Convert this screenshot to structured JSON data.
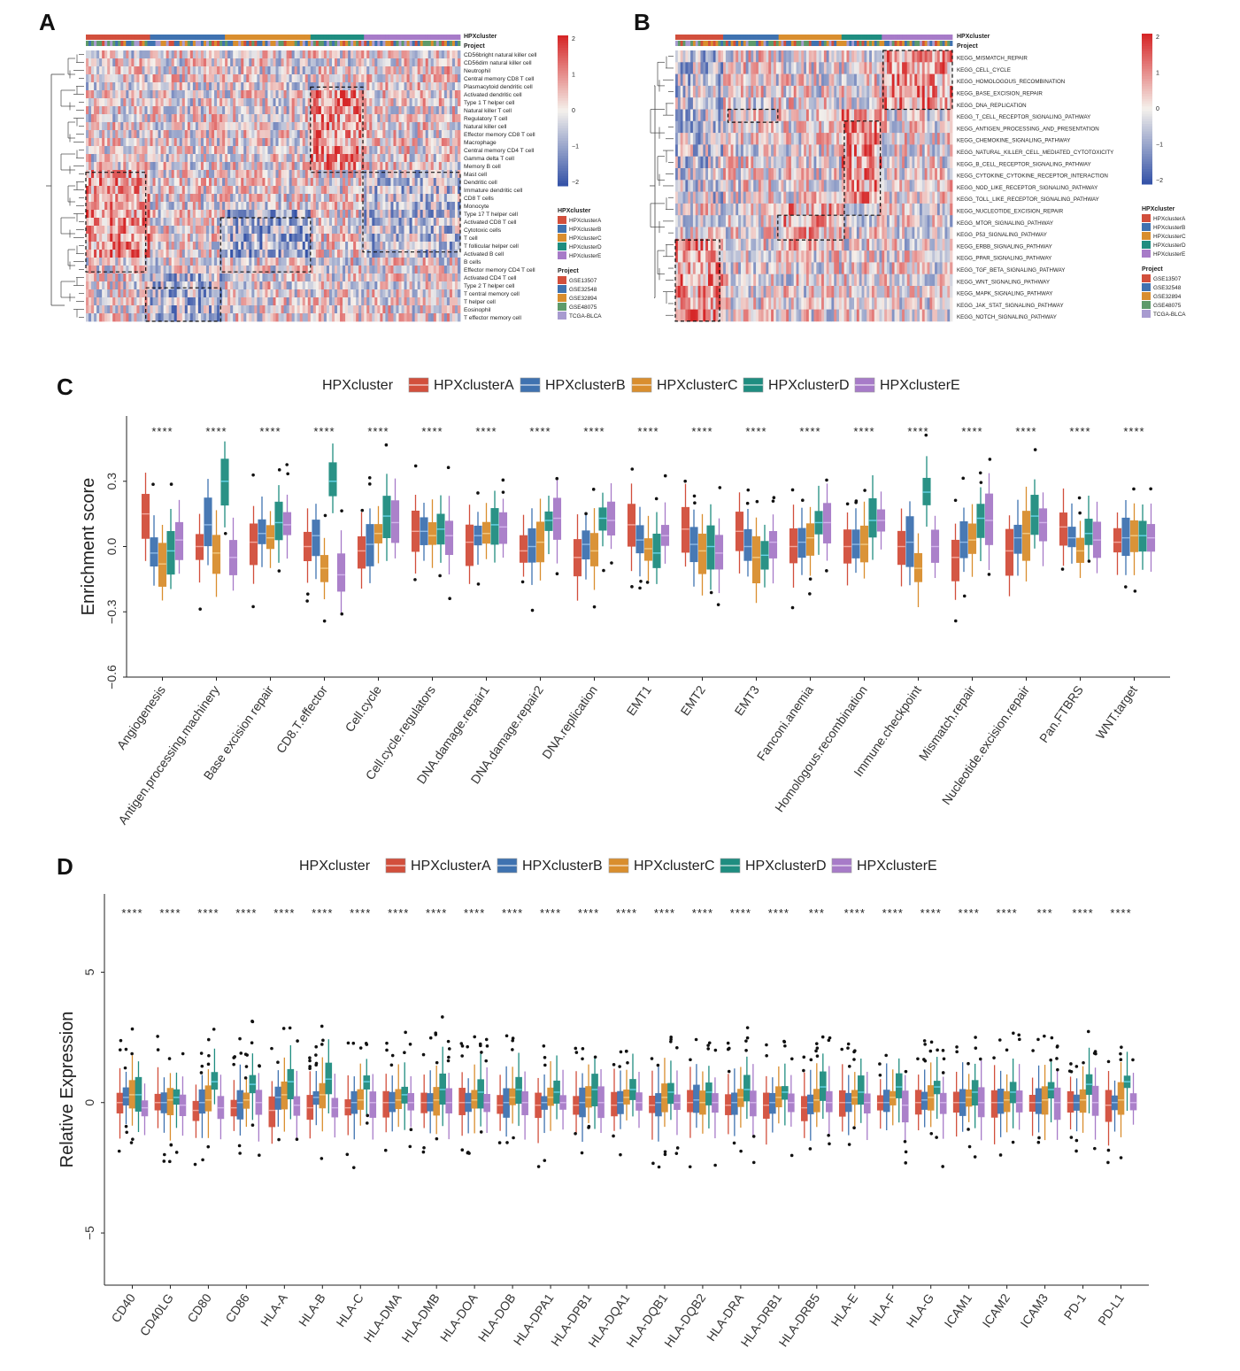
{
  "panels": {
    "A": "A",
    "B": "B",
    "C": "C",
    "D": "D"
  },
  "cluster_legend": {
    "title": "HPXcluster",
    "items": [
      "HPXclusterA",
      "HPXclusterB",
      "HPXclusterC",
      "HPXclusterD",
      "HPXclusterE"
    ],
    "colors": [
      "#d24f3c",
      "#3f72b0",
      "#d98e2e",
      "#1f8d80",
      "#a77bc8"
    ]
  },
  "heatmap_A": {
    "annotation_rows": [
      "HPXcluster",
      "Project"
    ],
    "rows": [
      "CD56bright natural killer cell",
      "CD56dim natural killer cell",
      "Neutrophil",
      "Central memory CD8 T cell",
      "Plasmacytoid dendritic cell",
      "Activated dendritic cell",
      "Type 1 T helper cell",
      "Natural killer T cell",
      "Regulatory T cell",
      "Natural killer cell",
      "Effector memory CD8 T cell",
      "Macrophage",
      "Central memory CD4 T cell",
      "Gamma delta T cell",
      "Memory B cell",
      "Mast cell",
      "Dendritic cell",
      "Immature dendritic cell",
      "CD8 T cells",
      "Monocyte",
      "Type 17 T helper cell",
      "Activated CD8 T cell",
      "Cytotoxic cells",
      "T cell",
      "T follicular helper cell",
      "Activated B cell",
      "B cells",
      "Effector memory CD4 T cell",
      "Activated CD4 T cell",
      "Type 2 T helper cell",
      "T central memory cell",
      "T helper cell",
      "Eosinophil",
      "T effector memory cell"
    ],
    "colorbar_ticks": [
      "2",
      "1",
      "0",
      "−1",
      "−2"
    ],
    "legend_hpx_title": "HPXcluster",
    "legend_hpx_items": [
      "HPXclusterA",
      "HPXclusterB",
      "HPXclusterC",
      "HPXclusterD",
      "HPXclusterE"
    ],
    "legend_project_title": "Project",
    "legend_project_items": [
      "GSE13507",
      "GSE32548",
      "GSE32894",
      "GSE48075",
      "TCGA-BLCA"
    ]
  },
  "heatmap_B": {
    "annotation_rows": [
      "HPXcluster",
      "Project"
    ],
    "rows": [
      "KEGG_MISMATCH_REPAIR",
      "KEGG_CELL_CYCLE",
      "KEGG_HOMOLOGOUS_RECOMBINATION",
      "KEGG_BASE_EXCISION_REPAIR",
      "KEGG_DNA_REPLICATION",
      "KEGG_T_CELL_RECEPTOR_SIGNALING_PATHWAY",
      "KEGG_ANTIGEN_PROCESSING_AND_PRESENTATION",
      "KEGG_CHEMOKINE_SIGNALING_PATHWAY",
      "KEGG_NATURAL_KILLER_CELL_MEDIATED_CYTOTOXICITY",
      "KEGG_B_CELL_RECEPTOR_SIGNALING_PATHWAY",
      "KEGG_CYTOKINE_CYTOKINE_RECEPTOR_INTERACTION",
      "KEGG_NOD_LIKE_RECEPTOR_SIGNALING_PATHWAY",
      "KEGG_TOLL_LIKE_RECEPTOR_SIGNALING_PATHWAY",
      "KEGG_NUCLEOTIDE_EXCISION_REPAIR",
      "KEGG_MTOR_SIGNALING_PATHWAY",
      "KEGG_P53_SIGNALING_PATHWAY",
      "KEGG_ERBB_SIGNALING_PATHWAY",
      "KEGG_PPAR_SIGNALING_PATHWAY",
      "KEGG_TGF_BETA_SIGNALING_PATHWAY",
      "KEGG_WNT_SIGNALING_PATHWAY",
      "KEGG_MAPK_SIGNALING_PATHWAY",
      "KEGG_JAK_STAT_SIGNALING_PATHWAY",
      "KEGG_NOTCH_SIGNALING_PATHWAY"
    ],
    "colorbar_ticks": [
      "2",
      "1",
      "0",
      "−1",
      "−2"
    ],
    "legend_hpx_title": "HPXcluster",
    "legend_hpx_items": [
      "HPXclusterA",
      "HPXclusterB",
      "HPXclusterC",
      "HPXclusterD",
      "HPXclusterE"
    ],
    "legend_project_title": "Project",
    "legend_project_items": [
      "GSE13507",
      "GSE32548",
      "GSE32894",
      "GSE48075",
      "TCGA-BLCA"
    ]
  },
  "chart_data": [
    {
      "type": "box",
      "panel": "C",
      "ylabel": "Enrichment score",
      "ylim": [
        -0.6,
        0.6
      ],
      "yticks": [
        -0.6,
        -0.3,
        0.0,
        0.3
      ],
      "ytick_labels": [
        "−0.6",
        "−0.3",
        "0.0",
        "0.3"
      ],
      "significance": "****",
      "categories": [
        "Angiogenesis",
        "Antigen.processing.machinery",
        "Base excision repair",
        "CD8.T.effector",
        "Cell.cycle",
        "Cell.cycle.regulators",
        "DNA.damage.repair1",
        "DNA.damage.repair2",
        "DNA.replication",
        "EMT1",
        "EMT2",
        "EMT3",
        "Fanconi.anemia",
        "Homologous.recombination",
        "Immune.checkpoint",
        "Mismatch.repair",
        "Nucleotide.excision.repair",
        "Pan.FTBRS",
        "WNT.target"
      ],
      "medians": [
        [
          0.15,
          -0.03,
          -0.08,
          -0.02,
          0.03
        ],
        [
          0.0,
          0.1,
          -0.03,
          0.3,
          -0.05
        ],
        [
          0.02,
          0.06,
          0.04,
          0.11,
          0.1
        ],
        [
          0.0,
          0.05,
          -0.1,
          0.3,
          -0.13
        ],
        [
          -0.02,
          0.01,
          0.06,
          0.14,
          0.11
        ],
        [
          0.07,
          0.07,
          0.05,
          0.08,
          0.05
        ],
        [
          0.02,
          0.05,
          0.06,
          0.1,
          0.09
        ],
        [
          -0.02,
          0.0,
          0.02,
          0.12,
          0.13
        ],
        [
          -0.05,
          0.01,
          -0.02,
          0.13,
          0.12
        ],
        [
          0.1,
          0.03,
          -0.01,
          -0.03,
          0.05
        ],
        [
          0.08,
          0.01,
          -0.02,
          0.0,
          -0.03
        ],
        [
          0.07,
          0.0,
          -0.05,
          -0.04,
          0.02
        ],
        [
          0.0,
          0.02,
          0.04,
          0.11,
          0.11
        ],
        [
          0.0,
          0.01,
          0.01,
          0.12,
          0.12
        ],
        [
          0.0,
          0.02,
          -0.1,
          0.25,
          0.0
        ],
        [
          -0.05,
          0.02,
          0.03,
          0.13,
          0.12
        ],
        [
          -0.02,
          0.04,
          0.06,
          0.14,
          0.11
        ],
        [
          0.09,
          0.04,
          -0.02,
          0.06,
          0.03
        ],
        [
          0.02,
          0.04,
          0.05,
          0.05,
          0.04
        ]
      ]
    },
    {
      "type": "box",
      "panel": "D",
      "ylabel": "Relative Expression",
      "ylim": [
        -7,
        8
      ],
      "yticks": [
        -5,
        0,
        5
      ],
      "ytick_labels": [
        "−5",
        "0",
        "5"
      ],
      "categories": [
        "CD40",
        "CD40LG",
        "CD80",
        "CD86",
        "HLA-A",
        "HLA-B",
        "HLA-C",
        "HLA-DMA",
        "HLA-DMB",
        "HLA-DOA",
        "HLA-DOB",
        "HLA-DPA1",
        "HLA-DPB1",
        "HLA-DQA1",
        "HLA-DQB1",
        "HLA-DQB2",
        "HLA-DRA",
        "HLA-DRB1",
        "HLA-DRB5",
        "HLA-E",
        "HLA-F",
        "HLA-G",
        "ICAM1",
        "ICAM2",
        "ICAM3",
        "PD-1",
        "PD-L1"
      ],
      "significance": [
        "****",
        "****",
        "****",
        "****",
        "****",
        "****",
        "****",
        "****",
        "****",
        "****",
        "****",
        "****",
        "****",
        "****",
        "****",
        "****",
        "****",
        "****",
        "***",
        "****",
        "****",
        "****",
        "****",
        "****",
        "***",
        "****",
        "****"
      ],
      "medians": [
        [
          0.0,
          0.2,
          0.3,
          0.3,
          -0.2
        ],
        [
          0.0,
          0.0,
          0.1,
          0.2,
          -0.1
        ],
        [
          -0.3,
          0.0,
          0.1,
          0.8,
          -0.2
        ],
        [
          -0.2,
          0.0,
          0.1,
          0.7,
          0.0
        ],
        [
          -0.3,
          0.2,
          0.3,
          0.8,
          -0.1
        ],
        [
          -0.2,
          0.2,
          0.3,
          0.9,
          -0.2
        ],
        [
          -0.2,
          0.0,
          0.1,
          0.8,
          0.0
        ],
        [
          0.0,
          0.0,
          0.1,
          0.3,
          0.0
        ],
        [
          0.0,
          0.0,
          0.1,
          0.5,
          0.0
        ],
        [
          0.0,
          0.0,
          0.1,
          0.4,
          0.0
        ],
        [
          -0.1,
          0.0,
          0.2,
          0.5,
          0.0
        ],
        [
          -0.1,
          0.0,
          0.2,
          0.4,
          0.0
        ],
        [
          -0.1,
          0.0,
          0.2,
          0.5,
          0.0
        ],
        [
          -0.1,
          0.0,
          0.2,
          0.5,
          0.0
        ],
        [
          -0.1,
          0.0,
          0.2,
          0.4,
          0.0
        ],
        [
          0.0,
          0.1,
          0.0,
          0.4,
          0.0
        ],
        [
          -0.1,
          0.0,
          0.2,
          0.5,
          0.0
        ],
        [
          -0.1,
          0.0,
          0.2,
          0.4,
          0.0
        ],
        [
          -0.2,
          0.0,
          0.1,
          0.6,
          0.0
        ],
        [
          0.0,
          0.0,
          0.2,
          0.4,
          0.0
        ],
        [
          0.0,
          0.0,
          0.2,
          0.6,
          -0.1
        ],
        [
          0.0,
          0.1,
          0.2,
          0.6,
          0.0
        ],
        [
          0.0,
          0.0,
          0.2,
          0.4,
          0.0
        ],
        [
          0.0,
          0.0,
          0.1,
          0.4,
          0.0
        ],
        [
          0.0,
          0.0,
          0.1,
          0.5,
          0.0
        ],
        [
          0.0,
          0.0,
          0.1,
          0.7,
          0.0
        ],
        [
          -0.1,
          0.0,
          0.1,
          0.8,
          0.0
        ]
      ]
    }
  ]
}
